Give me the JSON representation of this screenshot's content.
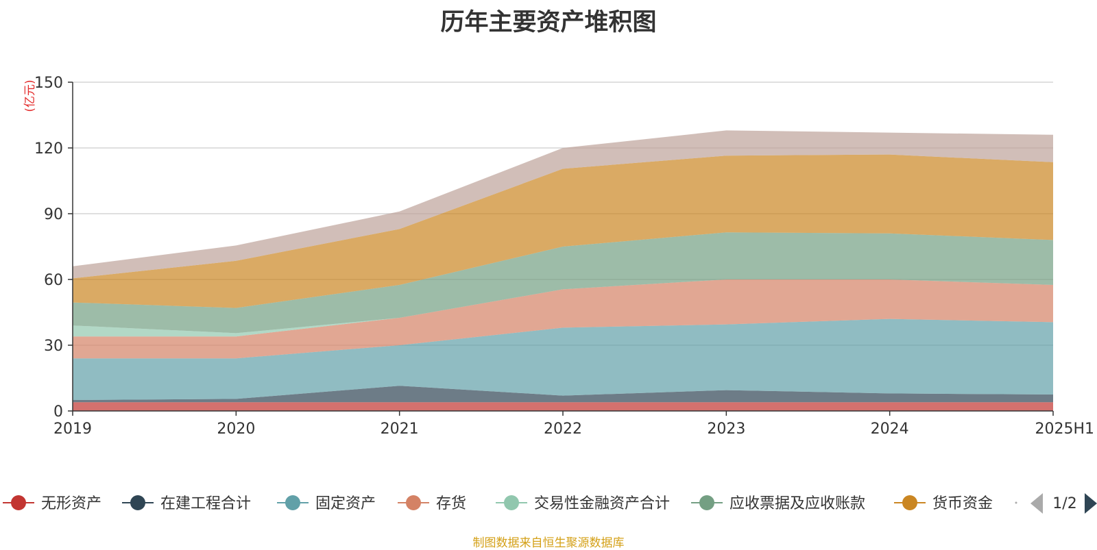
{
  "chart_data": {
    "type": "area",
    "stacked": true,
    "title": "历年主要资产堆积图",
    "unit": "(亿元)",
    "categories": [
      "2019",
      "2020",
      "2021",
      "2022",
      "2023",
      "2024",
      "2025H1"
    ],
    "ylim": [
      0,
      150
    ],
    "yticks": [
      0,
      30,
      60,
      90,
      120,
      150
    ],
    "grid": true,
    "legend_position": "bottom",
    "legend_page": "1/2",
    "series": [
      {
        "name": "无形资产",
        "color": "#c23531",
        "values": [
          4,
          4,
          4,
          4,
          4,
          4,
          4
        ]
      },
      {
        "name": "在建工程合计",
        "color": "#2f4554",
        "values": [
          1,
          1.5,
          7.5,
          3,
          5.5,
          4,
          3.5
        ]
      },
      {
        "name": "固定资产",
        "color": "#61a0a8",
        "values": [
          19,
          18.5,
          18.5,
          31,
          30,
          34,
          33
        ]
      },
      {
        "name": "存货",
        "color": "#d48265",
        "values": [
          10,
          10,
          12.5,
          17.5,
          20.5,
          18,
          17
        ]
      },
      {
        "name": "交易性金融资产合计",
        "color": "#91c7ae",
        "values": [
          5,
          1.5,
          0,
          0,
          0,
          0,
          0
        ]
      },
      {
        "name": "应收票据及应收账款",
        "color": "#749f83",
        "values": [
          10.5,
          11.5,
          15,
          19.5,
          21.5,
          21,
          20.5
        ]
      },
      {
        "name": "货币资金",
        "color": "#ca8622",
        "values": [
          11,
          21.5,
          25.5,
          35.5,
          35,
          36,
          35.5
        ]
      },
      {
        "name": "",
        "color": "#bda29a",
        "values": [
          5.5,
          7,
          8,
          9.5,
          11.5,
          10,
          12.5
        ]
      }
    ]
  },
  "source_note": "制图数据来自恒生聚源数据库"
}
